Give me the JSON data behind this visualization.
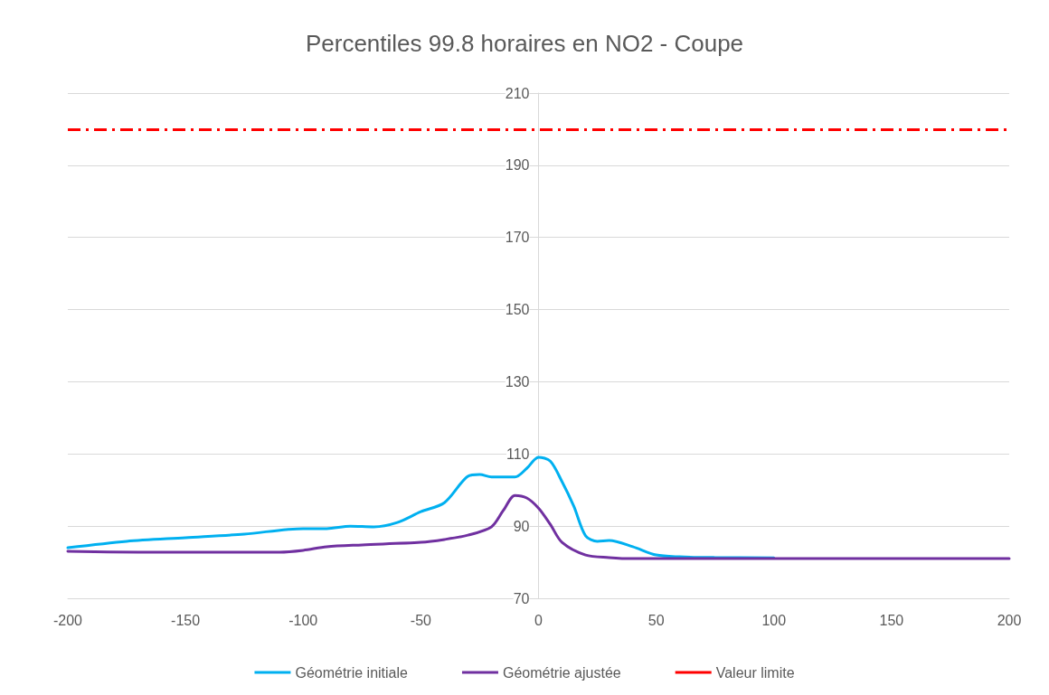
{
  "chart_data": {
    "type": "line",
    "title": "Percentiles 99.8 horaires en NO2 - Coupe",
    "xlim": [
      -200,
      200
    ],
    "xticks": [
      -200,
      -150,
      -100,
      -50,
      0,
      50,
      100,
      150,
      200
    ],
    "ylim": [
      70,
      210
    ],
    "yticks": [
      70,
      90,
      110,
      130,
      150,
      170,
      190,
      210
    ],
    "grid": "y",
    "legend": "bottom",
    "marker": "none",
    "line_style": "solid",
    "series": [
      {
        "name": "Géométrie initiale",
        "color": "#00b0f0",
        "x": [
          -200,
          -175,
          -150,
          -125,
          -100,
          -90,
          -80,
          -70,
          -60,
          -50,
          -40,
          -30,
          -25,
          -20,
          -10,
          -5,
          0,
          5,
          10,
          15,
          20,
          25,
          30,
          40,
          50,
          60,
          75,
          100
        ],
        "values": [
          84.0,
          85.8,
          86.8,
          87.8,
          89.3,
          89.3,
          90.0,
          89.8,
          91.0,
          94.0,
          96.5,
          103.8,
          104.3,
          103.6,
          103.6,
          106,
          109.1,
          108,
          102.3,
          95.5,
          87.3,
          85.8,
          86,
          84.3,
          82,
          81.5,
          81.3,
          81.2
        ]
      },
      {
        "name": "Géométrie ajustée",
        "color": "#7030a0",
        "x": [
          -200,
          -170,
          -110,
          -100,
          -90,
          -75,
          -50,
          -40,
          -30,
          -20,
          -15,
          -10,
          -5,
          0,
          5,
          10,
          20,
          30,
          40,
          100,
          200
        ],
        "values": [
          83.0,
          82.8,
          82.8,
          83.3,
          84.3,
          84.8,
          85.5,
          86.3,
          87.5,
          89.8,
          94.3,
          98.5,
          97.8,
          95,
          90.5,
          85.5,
          82,
          81.3,
          81,
          81,
          81.0
        ]
      }
    ],
    "ref_lines": [
      {
        "axis": "y",
        "value": 200,
        "label": "Valeur limite",
        "color": "#ff0000",
        "line_style": "dashed"
      }
    ]
  }
}
